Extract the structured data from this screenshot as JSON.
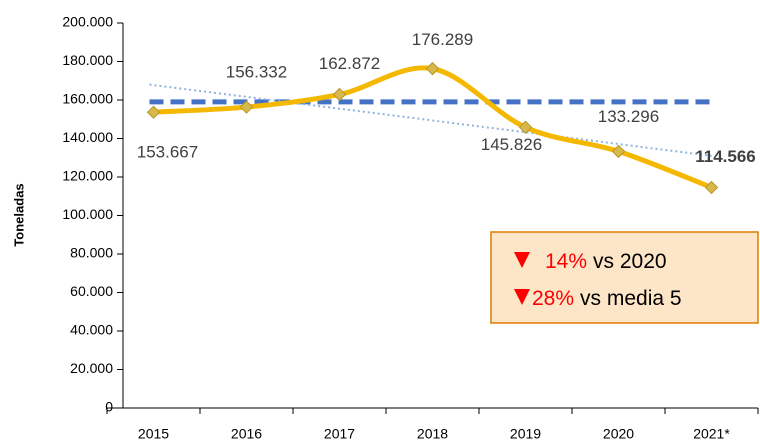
{
  "chart_data": {
    "type": "line",
    "y_axis_label": "Toneladas",
    "categories": [
      "2015",
      "2016",
      "2017",
      "2018",
      "2019",
      "2020",
      "2021*"
    ],
    "series": [
      {
        "name": "Toneladas",
        "color": "#f5b800",
        "values": [
          153667,
          156332,
          162872,
          176289,
          145826,
          133296,
          114566
        ],
        "value_labels": [
          "153.667",
          "156.332",
          "162.872",
          "176.289",
          "145.826",
          "133.296",
          "114.566"
        ]
      }
    ],
    "average_line": {
      "value": 158997,
      "color": "#4472c4"
    },
    "trend_line": {
      "start": 168000,
      "end": 131000,
      "color": "#8fb4dc"
    },
    "ylim": [
      0,
      200000
    ],
    "yticks": [
      0,
      {
        "value": 20000,
        "label": "20.000"
      },
      {
        "value": 40000,
        "label": "40.000"
      },
      {
        "value": 60000,
        "label": "60.000"
      },
      {
        "value": 80000,
        "label": "80.000"
      },
      {
        "value": 100000,
        "label": "100.000"
      },
      {
        "value": 120000,
        "label": "120.000"
      },
      {
        "value": 140000,
        "label": "140.000"
      },
      {
        "value": 160000,
        "label": "160.000"
      },
      {
        "value": 180000,
        "label": "180.000"
      },
      {
        "value": 200000,
        "label": "200.000"
      }
    ],
    "annotation": {
      "line1_pct": "14%",
      "line1_text": "vs 2020",
      "line2_pct": "28%",
      "line2_text": "vs media 5"
    },
    "grid": false
  }
}
